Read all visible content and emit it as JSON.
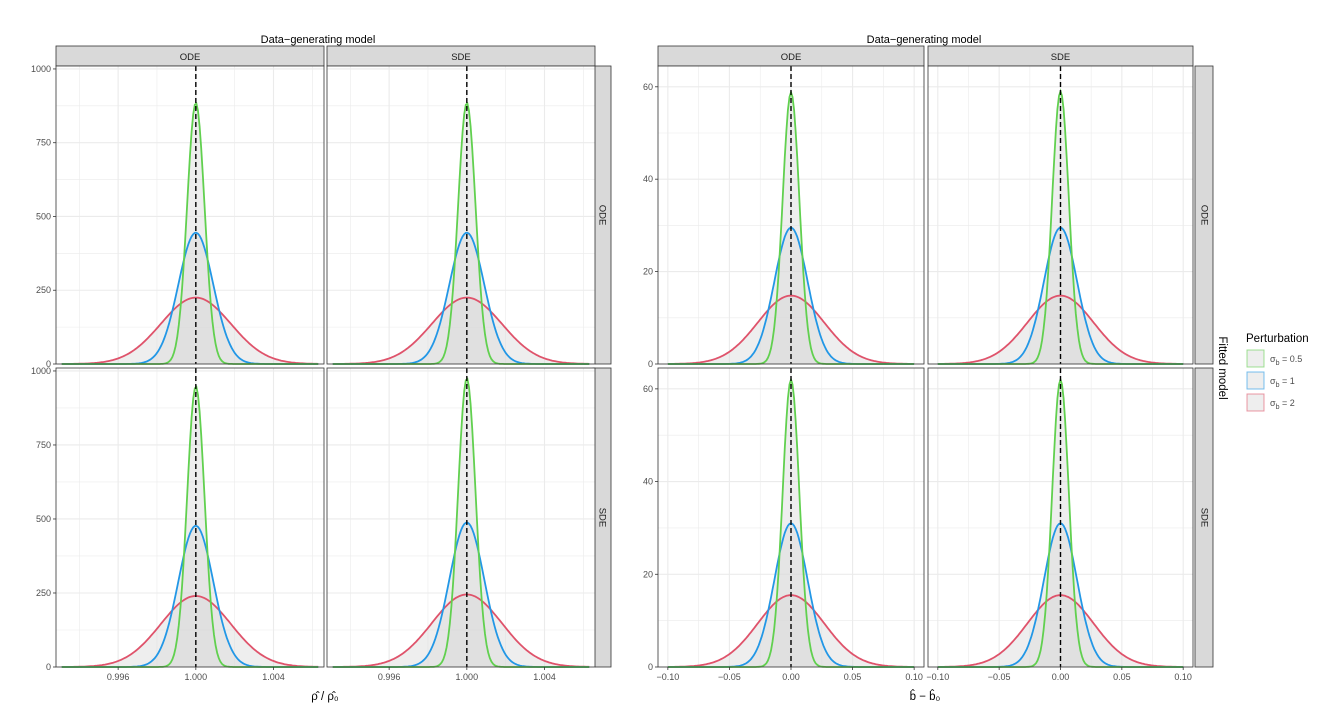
{
  "chart_data": [
    {
      "type": "line",
      "title": "Data−generating model",
      "xlabel": "ρ̂ / ρ̂₀",
      "col_facets": [
        "ODE",
        "SDE"
      ],
      "row_facets": [
        "ODE",
        "SDE"
      ],
      "xlim": [
        0.9928,
        1.0066
      ],
      "ylim": [
        0,
        1010
      ],
      "x_ticks": [
        0.996,
        1.0,
        1.004
      ],
      "x_tick_labels": [
        "0.996",
        "1.000",
        "1.004"
      ],
      "y_ticks": [
        0,
        250,
        500,
        750,
        1000
      ],
      "y_tick_labels": [
        "0",
        "250",
        "500",
        "750",
        "1000"
      ],
      "reference_line_x": 1.0,
      "x_range": [
        0.9931,
        1.0063
      ],
      "series": [
        {
          "name": "σb = 0.5",
          "sigma": 0.5
        },
        {
          "name": "σb = 1",
          "sigma": 1
        },
        {
          "name": "σb = 2",
          "sigma": 2
        }
      ],
      "peaks": [
        [
          [
            885,
            445,
            225
          ],
          [
            885,
            445,
            225
          ]
        ],
        [
          [
            948,
            477,
            240
          ],
          [
            975,
            488,
            245
          ]
        ]
      ],
      "peak_x": 1.0,
      "scale": [
        0.00045,
        0.0009,
        0.0018
      ]
    },
    {
      "type": "line",
      "title": "Data−generating model",
      "xlabel": "b̂ − b̂₀",
      "col_facets": [
        "ODE",
        "SDE"
      ],
      "row_facets": [
        "ODE",
        "SDE"
      ],
      "xlim": [
        -0.108,
        0.108
      ],
      "ylim": [
        0,
        64.5
      ],
      "x_ticks": [
        -0.1,
        -0.05,
        0.0,
        0.05,
        0.1
      ],
      "x_tick_labels": [
        "−0.10",
        "−0.05",
        "0.00",
        "0.05",
        "0.10"
      ],
      "y_ticks": [
        0,
        20,
        40,
        60
      ],
      "y_tick_labels": [
        "0",
        "20",
        "40",
        "60"
      ],
      "reference_line_x": 0.0,
      "x_range": [
        -0.1,
        0.1
      ],
      "series": [
        {
          "name": "σb = 0.5",
          "sigma": 0.5
        },
        {
          "name": "σb = 1",
          "sigma": 1
        },
        {
          "name": "σb = 2",
          "sigma": 2
        }
      ],
      "peaks": [
        [
          [
            58.8,
            29.5,
            14.8
          ],
          [
            59.0,
            29.5,
            14.8
          ]
        ],
        [
          [
            62.0,
            31.0,
            15.5
          ],
          [
            62.0,
            31.0,
            15.5
          ]
        ]
      ],
      "peak_x": 0.0,
      "scale": [
        0.0068,
        0.0135,
        0.027
      ]
    }
  ],
  "legend": {
    "title": "Perturbation",
    "items": [
      {
        "label": "σb = 0.5",
        "sym": "σ",
        "sub": "b",
        "rest": " = 0.5",
        "color": "#61d04f"
      },
      {
        "label": "σb = 1",
        "sym": "σ",
        "sub": "b",
        "rest": " = 1",
        "color": "#2297e6"
      },
      {
        "label": "σb = 2",
        "sym": "σ",
        "sub": "b",
        "rest": " = 2",
        "color": "#df536b"
      }
    ]
  },
  "row_strip_title": "Fitted model",
  "colors": {
    "panel_bg": "#ffffff",
    "grid": "#ebebeb",
    "strip_bg": "#d9d9d9",
    "border": "#333333",
    "fill": "#d9d9d9"
  }
}
